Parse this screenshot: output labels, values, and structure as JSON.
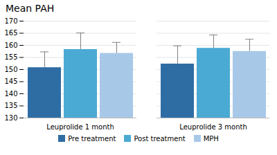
{
  "chart_data": {
    "type": "bar",
    "title": "Mean PAH",
    "categories": [
      "Leuprolide 1 month",
      "Leuprolide 3 month"
    ],
    "series": [
      {
        "name": "Pre treatment",
        "color": "#2E6DA4",
        "values": [
          150.8,
          152.3
        ],
        "errors": [
          6.5,
          7.5
        ]
      },
      {
        "name": "Post treatment",
        "color": "#4BAAD4",
        "values": [
          158.3,
          158.8
        ],
        "errors": [
          6.8,
          5.5
        ]
      },
      {
        "name": "MPH",
        "color": "#A8C8E8",
        "values": [
          156.7,
          157.5
        ],
        "errors": [
          4.5,
          5.0
        ]
      }
    ],
    "ylim": [
      130,
      170
    ],
    "yticks": [
      130,
      135,
      140,
      145,
      150,
      155,
      160,
      165,
      170
    ],
    "grid": true,
    "legend": "bottom"
  }
}
